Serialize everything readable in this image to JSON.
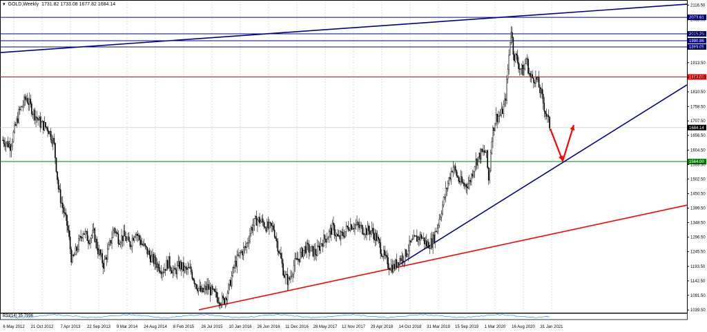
{
  "header": {
    "symbol": "GOLD,Weekly",
    "ohlc": "1731.82 1733.08 1677.82 1684.14"
  },
  "rsi_label": "RSI(14) 35.7996",
  "colors": {
    "candle": "#000000",
    "support_line": "#00008b",
    "red_line": "#ff0000",
    "green_line": "#008000",
    "horizontal_blue": "#00008b",
    "arrow": "#ff0000",
    "grid": "#c0c0c0",
    "rsi_line": "#1e90ff"
  },
  "chart_data": {
    "type": "candlestick",
    "title": "",
    "xlabel": "",
    "ylabel": "",
    "ylim": [
      1030,
      2130
    ],
    "y_ticks": [
      "2116.50",
      "2065.00",
      "2015.25",
      "1964.00",
      "1913.50",
      "1862.00",
      "1810.50",
      "1758.50",
      "1707.50",
      "1656.50",
      "1604.50",
      "1553.50",
      "1502.50",
      "1450.50",
      "1399.50",
      "1348.50",
      "1296.50",
      "1245.50",
      "1193.50",
      "1142.50",
      "1091.50",
      "1039.50"
    ],
    "x_ticks": [
      "6 May 2012",
      "21 Oct 2012",
      "7 Apr 2013",
      "22 Sep 2013",
      "9 Mar 2014",
      "24 Aug 2014",
      "8 Feb 2015",
      "26 Jul 2015",
      "10 Jan 2016",
      "26 Jun 2016",
      "11 Dec 2016",
      "28 May 2017",
      "12 Nov 2017",
      "29 Apr 2018",
      "14 Oct 2018",
      "31 Mar 2019",
      "15 Sep 2019",
      "1 Mar 2020",
      "16 Aug 2020",
      "31 Jan 2021"
    ],
    "horizontal_levels": [
      {
        "label": "2073.61",
        "value": 2073.61,
        "color": "#00008b"
      },
      {
        "label": "2015.25",
        "value": 2015.25,
        "color": "#00008b"
      },
      {
        "label": "1990.86",
        "value": 1990.86,
        "color": "#00008b"
      },
      {
        "label": "1969.05",
        "value": 1969.05,
        "color": "#00008b"
      },
      {
        "label": "1863.00",
        "value": 1863.0,
        "color": "#ff0000"
      },
      {
        "label": "1684.14",
        "value": 1684.14,
        "color": "#000000"
      },
      {
        "label": "1564.00",
        "value": 1564.0,
        "color": "#008000"
      }
    ],
    "trendlines": [
      {
        "color": "#00008b",
        "from": [
          0,
          1949
        ],
        "to": [
          995,
          2120
        ]
      },
      {
        "color": "#00008b",
        "from": [
          572,
          1190
        ],
        "to": [
          995,
          1835
        ]
      },
      {
        "color": "#ff0000",
        "from": [
          288,
          1040
        ],
        "to": [
          995,
          1410
        ]
      }
    ],
    "arrows": [
      {
        "from": [
          797,
          1680
        ],
        "to": [
          815,
          1566
        ]
      },
      {
        "from": [
          815,
          1566
        ],
        "to": [
          831,
          1693
        ]
      }
    ],
    "price_path": [
      [
        4,
        1640
      ],
      [
        15,
        1620
      ],
      [
        28,
        1740
      ],
      [
        38,
        1790
      ],
      [
        48,
        1740
      ],
      [
        58,
        1700
      ],
      [
        70,
        1680
      ],
      [
        78,
        1630
      ],
      [
        85,
        1460
      ],
      [
        92,
        1390
      ],
      [
        98,
        1330
      ],
      [
        104,
        1210
      ],
      [
        112,
        1260
      ],
      [
        120,
        1320
      ],
      [
        128,
        1290
      ],
      [
        136,
        1310
      ],
      [
        142,
        1250
      ],
      [
        150,
        1200
      ],
      [
        158,
        1260
      ],
      [
        165,
        1330
      ],
      [
        172,
        1290
      ],
      [
        180,
        1300
      ],
      [
        188,
        1270
      ],
      [
        196,
        1320
      ],
      [
        204,
        1280
      ],
      [
        212,
        1250
      ],
      [
        220,
        1220
      ],
      [
        228,
        1200
      ],
      [
        236,
        1180
      ],
      [
        244,
        1210
      ],
      [
        252,
        1170
      ],
      [
        260,
        1200
      ],
      [
        268,
        1180
      ],
      [
        276,
        1180
      ],
      [
        284,
        1130
      ],
      [
        292,
        1100
      ],
      [
        300,
        1120
      ],
      [
        308,
        1100
      ],
      [
        316,
        1080
      ],
      [
        324,
        1070
      ],
      [
        332,
        1120
      ],
      [
        340,
        1200
      ],
      [
        348,
        1240
      ],
      [
        356,
        1260
      ],
      [
        364,
        1330
      ],
      [
        372,
        1360
      ],
      [
        380,
        1350
      ],
      [
        388,
        1330
      ],
      [
        396,
        1330
      ],
      [
        404,
        1250
      ],
      [
        412,
        1160
      ],
      [
        418,
        1140
      ],
      [
        426,
        1200
      ],
      [
        434,
        1230
      ],
      [
        442,
        1260
      ],
      [
        450,
        1250
      ],
      [
        458,
        1240
      ],
      [
        466,
        1280
      ],
      [
        474,
        1300
      ],
      [
        482,
        1330
      ],
      [
        490,
        1290
      ],
      [
        498,
        1310
      ],
      [
        506,
        1340
      ],
      [
        514,
        1340
      ],
      [
        522,
        1330
      ],
      [
        530,
        1320
      ],
      [
        538,
        1320
      ],
      [
        546,
        1290
      ],
      [
        554,
        1240
      ],
      [
        562,
        1200
      ],
      [
        570,
        1190
      ],
      [
        578,
        1220
      ],
      [
        586,
        1230
      ],
      [
        594,
        1270
      ],
      [
        602,
        1290
      ],
      [
        610,
        1300
      ],
      [
        618,
        1270
      ],
      [
        626,
        1280
      ],
      [
        634,
        1340
      ],
      [
        642,
        1420
      ],
      [
        650,
        1500
      ],
      [
        656,
        1550
      ],
      [
        664,
        1500
      ],
      [
        672,
        1480
      ],
      [
        680,
        1490
      ],
      [
        688,
        1560
      ],
      [
        696,
        1590
      ],
      [
        704,
        1600
      ],
      [
        708,
        1490
      ],
      [
        712,
        1650
      ],
      [
        718,
        1720
      ],
      [
        726,
        1730
      ],
      [
        732,
        1780
      ],
      [
        736,
        1900
      ],
      [
        740,
        2040
      ],
      [
        744,
        1940
      ],
      [
        748,
        1930
      ],
      [
        752,
        1900
      ],
      [
        758,
        1880
      ],
      [
        762,
        1930
      ],
      [
        768,
        1860
      ],
      [
        774,
        1860
      ],
      [
        778,
        1850
      ],
      [
        784,
        1800
      ],
      [
        790,
        1740
      ],
      [
        797,
        1684
      ]
    ]
  }
}
